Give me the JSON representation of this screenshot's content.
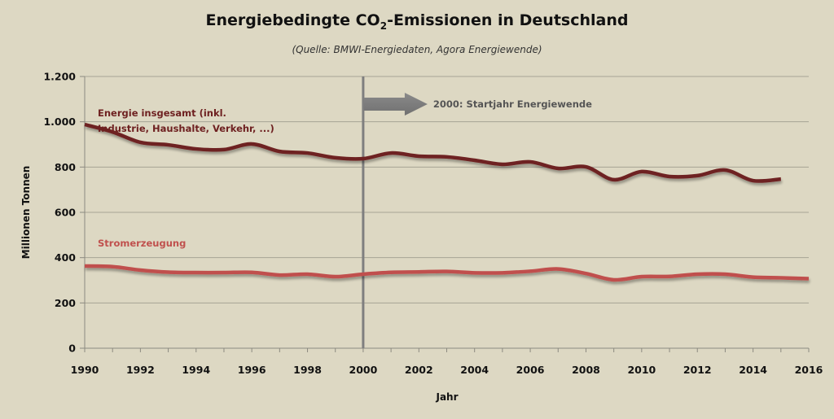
{
  "chart_data": {
    "type": "line",
    "title_main": "Energiebedingte CO",
    "title_sub": "2",
    "title_rest": "-Emissionen  in Deutschland",
    "title": "Energiebedingte CO2-Emissionen in Deutschland",
    "subtitle": "(Quelle: BMWI-Energiedaten, Agora Energiewende)",
    "xlabel": "Jahr",
    "ylabel": "Millionen Tonnen",
    "xlim": [
      1990,
      2016
    ],
    "ylim": [
      0,
      1200
    ],
    "grid": "horizontal",
    "y_ticks": [
      0,
      200,
      400,
      600,
      800,
      1000,
      1200
    ],
    "y_tick_labels": [
      "0",
      "200",
      "400",
      "600",
      "800",
      "1.000",
      "1.200"
    ],
    "x_ticks": [
      1990,
      1992,
      1994,
      1996,
      1998,
      2000,
      2002,
      2004,
      2006,
      2008,
      2010,
      2012,
      2014,
      2016
    ],
    "x_tick_labels": [
      "1990",
      "1992",
      "1994",
      "1996",
      "1998",
      "2000",
      "2002",
      "2004",
      "2006",
      "2008",
      "2010",
      "2012",
      "2014",
      "2016"
    ],
    "series": [
      {
        "name": "Energie insgesamt (inkl. Industrie, Haushalte, Verkehr, ...)",
        "label_lines": [
          "Energie insgesamt (inkl.",
          "Industrie, Haushalte, Verkehr, ...)"
        ],
        "color": "#6e2020",
        "x": [
          1990,
          1991,
          1992,
          1993,
          1994,
          1995,
          1996,
          1997,
          1998,
          1999,
          2000,
          2001,
          2002,
          2003,
          2004,
          2005,
          2006,
          2007,
          2008,
          2009,
          2010,
          2011,
          2012,
          2013,
          2014,
          2015
        ],
        "values": [
          988,
          955,
          909,
          898,
          880,
          877,
          902,
          869,
          862,
          841,
          837,
          862,
          848,
          845,
          830,
          812,
          823,
          794,
          801,
          744,
          780,
          758,
          762,
          787,
          740,
          747
        ]
      },
      {
        "name": "Stromerzeugung",
        "label_lines": [
          "Stromerzeugung"
        ],
        "color": "#c0504d",
        "x": [
          1990,
          1991,
          1992,
          1993,
          1994,
          1995,
          1996,
          1997,
          1998,
          1999,
          2000,
          2001,
          2002,
          2003,
          2004,
          2005,
          2006,
          2007,
          2008,
          2009,
          2010,
          2011,
          2012,
          2013,
          2014,
          2015,
          2016
        ],
        "values": [
          363,
          360,
          345,
          336,
          334,
          334,
          335,
          323,
          327,
          316,
          327,
          335,
          337,
          339,
          333,
          333,
          340,
          350,
          330,
          302,
          316,
          317,
          327,
          327,
          314,
          311,
          307
        ]
      }
    ],
    "annotations": [
      {
        "type": "vertical-line",
        "x": 2000,
        "color": "#7f7f7f"
      },
      {
        "type": "arrow",
        "x": 2000,
        "text": "2000: Startjahr Energiewende",
        "color": "#7f7f7f"
      }
    ]
  }
}
